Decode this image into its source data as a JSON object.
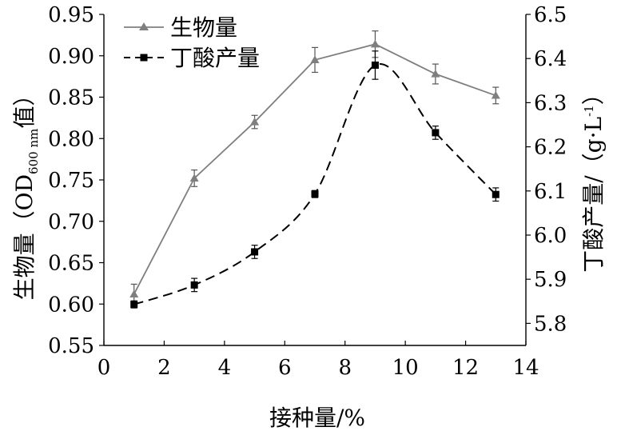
{
  "chart_data": {
    "type": "line",
    "xlabel": "接种量/%",
    "ylabel_left": "生物量（OD600 nm值）",
    "ylabel_left_parts": {
      "main": "生物量（OD",
      "sub": "600 nm",
      "tail": "值）"
    },
    "ylabel_right": "丁酸产量/（g·L-1）",
    "ylabel_right_parts": {
      "main": "丁酸产量/（g·L",
      "sup": "-1",
      "tail": "）"
    },
    "xlim": [
      0,
      14
    ],
    "ylim_left": [
      0.55,
      0.95
    ],
    "ylim_right": [
      5.75,
      6.5
    ],
    "x_ticks": [
      "0",
      "2",
      "4",
      "6",
      "8",
      "10",
      "12",
      "14"
    ],
    "y_left_ticks": [
      "0.55",
      "0.60",
      "0.65",
      "0.70",
      "0.75",
      "0.80",
      "0.85",
      "0.90",
      "0.95"
    ],
    "y_right_ticks": [
      "5.8",
      "5.9",
      "6.0",
      "6.1",
      "6.2",
      "6.3",
      "6.4",
      "6.5"
    ],
    "grid": false,
    "legend_position": "top-left",
    "series": [
      {
        "name": "生物量",
        "axis": "left",
        "marker": "triangle",
        "line_style": "solid",
        "color": "#7f7f7f",
        "x": [
          1,
          3,
          5,
          7,
          9,
          11,
          13
        ],
        "y": [
          0.612,
          0.752,
          0.82,
          0.895,
          0.914,
          0.878,
          0.852
        ],
        "error": [
          0.012,
          0.01,
          0.008,
          0.015,
          0.016,
          0.012,
          0.01
        ]
      },
      {
        "name": "丁酸产量",
        "axis": "right",
        "marker": "square",
        "line_style": "dashed",
        "color": "#000000",
        "x": [
          1,
          3,
          5,
          7,
          9,
          11,
          13
        ],
        "y": [
          5.843,
          5.887,
          5.962,
          6.093,
          6.385,
          6.232,
          6.092
        ],
        "error": [
          0.008,
          0.015,
          0.015,
          0.008,
          0.032,
          0.015,
          0.015
        ]
      }
    ]
  }
}
